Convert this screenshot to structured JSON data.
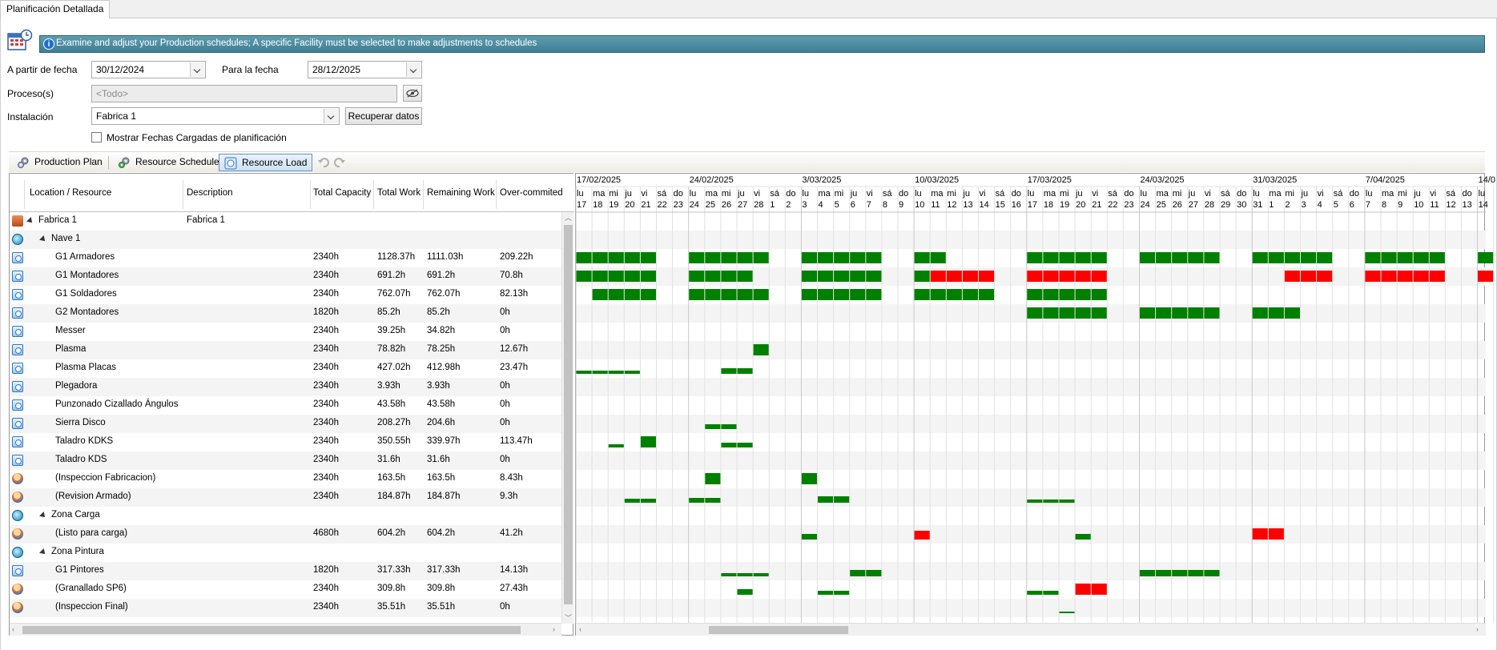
{
  "tab": {
    "label": "Planificación Detallada"
  },
  "banner": {
    "text": "Examine and adjust your Production schedules; A specific Facility must be selected to make adjustments to schedules"
  },
  "filters": {
    "from_label": "A partir de fecha",
    "from_value": "30/12/2024",
    "to_label": "Para la fecha",
    "to_value": "28/12/2025",
    "process_label": "Proceso(s)",
    "process_placeholder": "<Todo>",
    "facility_label": "Instalación",
    "facility_value": "Fabrica 1",
    "fetch_button": "Recuperar datos",
    "show_loaded_label": "Mostrar Fechas Cargadas de planificación"
  },
  "toolbar": {
    "production_plan": "Production Plan",
    "resource_schedule": "Resource Schedule",
    "resource_load": "Resource Load"
  },
  "grid": {
    "columns": [
      "Location / Resource",
      "Description",
      "Total Capacity",
      "Total Work",
      "Remaining Work",
      "Over-commited"
    ],
    "rows": [
      {
        "level": 0,
        "icon": "factory-icon",
        "kind": "fac",
        "name": "Fabrica 1",
        "desc": "Fabrica 1",
        "cap": "",
        "work": "",
        "rem": "",
        "over": "",
        "expand": true
      },
      {
        "level": 1,
        "icon": "area-icon",
        "kind": "nave",
        "name": "Nave 1",
        "desc": "",
        "cap": "",
        "work": "",
        "rem": "",
        "over": "",
        "expand": true
      },
      {
        "level": 2,
        "icon": "resource-icon",
        "kind": "res",
        "name": "G1 Armadores",
        "desc": "",
        "cap": "2340h",
        "work": "1128.37h",
        "rem": "1111.03h",
        "over": "209.22h"
      },
      {
        "level": 2,
        "icon": "resource-icon",
        "kind": "res",
        "name": "G1 Montadores",
        "desc": "",
        "cap": "2340h",
        "work": "691.2h",
        "rem": "691.2h",
        "over": "70.8h"
      },
      {
        "level": 2,
        "icon": "resource-icon",
        "kind": "res",
        "name": "G1 Soldadores",
        "desc": "",
        "cap": "2340h",
        "work": "762.07h",
        "rem": "762.07h",
        "over": "82.13h"
      },
      {
        "level": 2,
        "icon": "resource-icon",
        "kind": "res",
        "name": "G2 Montadores",
        "desc": "",
        "cap": "1820h",
        "work": "85.2h",
        "rem": "85.2h",
        "over": "0h"
      },
      {
        "level": 2,
        "icon": "resource-icon",
        "kind": "res",
        "name": "Messer",
        "desc": "",
        "cap": "2340h",
        "work": "39.25h",
        "rem": "34.82h",
        "over": "0h"
      },
      {
        "level": 2,
        "icon": "resource-icon",
        "kind": "res",
        "name": "Plasma",
        "desc": "",
        "cap": "2340h",
        "work": "78.82h",
        "rem": "78.25h",
        "over": "12.67h"
      },
      {
        "level": 2,
        "icon": "resource-icon",
        "kind": "res",
        "name": "Plasma Placas",
        "desc": "",
        "cap": "2340h",
        "work": "427.02h",
        "rem": "412.98h",
        "over": "23.47h"
      },
      {
        "level": 2,
        "icon": "resource-icon",
        "kind": "res",
        "name": "Plegadora",
        "desc": "",
        "cap": "2340h",
        "work": "3.93h",
        "rem": "3.93h",
        "over": "0h"
      },
      {
        "level": 2,
        "icon": "resource-icon",
        "kind": "res",
        "name": "Punzonado Cizallado Ángulos",
        "desc": "",
        "cap": "2340h",
        "work": "43.58h",
        "rem": "43.58h",
        "over": "0h"
      },
      {
        "level": 2,
        "icon": "resource-icon",
        "kind": "res",
        "name": "Sierra Disco",
        "desc": "",
        "cap": "2340h",
        "work": "208.27h",
        "rem": "204.6h",
        "over": "0h"
      },
      {
        "level": 2,
        "icon": "resource-icon",
        "kind": "res",
        "name": "Taladro KDKS",
        "desc": "",
        "cap": "2340h",
        "work": "350.55h",
        "rem": "339.97h",
        "over": "113.47h"
      },
      {
        "level": 2,
        "icon": "resource-icon",
        "kind": "res",
        "name": "Taladro KDS",
        "desc": "",
        "cap": "2340h",
        "work": "31.6h",
        "rem": "31.6h",
        "over": "0h"
      },
      {
        "level": 2,
        "icon": "person-icon",
        "kind": "person",
        "name": "(Inspeccion Fabricacion)",
        "desc": "",
        "cap": "2340h",
        "work": "163.5h",
        "rem": "163.5h",
        "over": "8.43h"
      },
      {
        "level": 2,
        "icon": "person-icon",
        "kind": "person",
        "name": "(Revision Armado)",
        "desc": "",
        "cap": "2340h",
        "work": "184.87h",
        "rem": "184.87h",
        "over": "9.3h"
      },
      {
        "level": 1,
        "icon": "area-icon",
        "kind": "nave",
        "name": "Zona Carga",
        "desc": "",
        "cap": "",
        "work": "",
        "rem": "",
        "over": "",
        "expand": true
      },
      {
        "level": 2,
        "icon": "person-icon",
        "kind": "person",
        "name": "(Listo para carga)",
        "desc": "",
        "cap": "4680h",
        "work": "604.2h",
        "rem": "604.2h",
        "over": "41.2h"
      },
      {
        "level": 1,
        "icon": "area-icon",
        "kind": "nave",
        "name": "Zona Pintura",
        "desc": "",
        "cap": "",
        "work": "",
        "rem": "",
        "over": "",
        "expand": true
      },
      {
        "level": 2,
        "icon": "resource-icon",
        "kind": "res",
        "name": "G1  Pintores",
        "desc": "",
        "cap": "1820h",
        "work": "317.33h",
        "rem": "317.33h",
        "over": "14.13h"
      },
      {
        "level": 2,
        "icon": "person-icon",
        "kind": "person",
        "name": "(Granallado SP6)",
        "desc": "",
        "cap": "2340h",
        "work": "309.8h",
        "rem": "309.8h",
        "over": "27.43h"
      },
      {
        "level": 2,
        "icon": "person-icon",
        "kind": "person",
        "name": "(Inspeccion Final)",
        "desc": "",
        "cap": "2340h",
        "work": "35.51h",
        "rem": "35.51h",
        "over": "0h"
      }
    ]
  },
  "gantt": {
    "weeks": [
      "17/02/2025",
      "24/02/2025",
      "3/03/2025",
      "10/03/2025",
      "17/03/2025",
      "24/03/2025",
      "31/03/2025",
      "7/04/2025",
      "14/0"
    ],
    "day_names": [
      "lu",
      "ma",
      "mi",
      "ju",
      "vi",
      "sá",
      "do"
    ],
    "day_numbers": [
      "17",
      "18",
      "19",
      "20",
      "21",
      "22",
      "23",
      "24",
      "25",
      "26",
      "27",
      "28",
      "1",
      "2",
      "3",
      "4",
      "5",
      "6",
      "7",
      "8",
      "9",
      "10",
      "11",
      "12",
      "13",
      "14",
      "15",
      "16",
      "17",
      "18",
      "19",
      "20",
      "21",
      "22",
      "23",
      "24",
      "25",
      "26",
      "27",
      "28",
      "29",
      "30",
      "31",
      "1",
      "2",
      "3",
      "4",
      "5",
      "6",
      "7",
      "8",
      "9",
      "10",
      "11",
      "12",
      "13",
      "14"
    ],
    "ok_color": "#008000",
    "over_color": "#ff0000",
    "bars": [
      {
        "row": 2,
        "segments": [
          [
            0,
            5,
            "ok",
            1
          ],
          [
            7,
            12,
            "ok",
            1
          ],
          [
            14,
            19,
            "ok",
            1
          ],
          [
            21,
            23,
            "ok",
            1
          ],
          [
            28,
            33,
            "ok",
            1
          ],
          [
            35,
            40,
            "ok",
            1
          ],
          [
            42,
            47,
            "ok",
            1
          ],
          [
            49,
            54,
            "ok",
            1
          ],
          [
            56,
            57,
            "ok",
            1
          ]
        ]
      },
      {
        "row": 3,
        "segments": [
          [
            0,
            5,
            "ok",
            1
          ],
          [
            7,
            11,
            "ok",
            1
          ],
          [
            14,
            19,
            "ok",
            1
          ],
          [
            21,
            22,
            "ok",
            1
          ],
          [
            22,
            26,
            "over",
            1
          ],
          [
            28,
            33,
            "over",
            1
          ],
          [
            44,
            47,
            "over",
            1
          ],
          [
            49,
            54,
            "over",
            1
          ],
          [
            56,
            57,
            "over",
            1
          ]
        ]
      },
      {
        "row": 4,
        "segments": [
          [
            1,
            5,
            "ok",
            1
          ],
          [
            7,
            12,
            "ok",
            1
          ],
          [
            14,
            19,
            "ok",
            1
          ],
          [
            21,
            26,
            "ok",
            1
          ],
          [
            28,
            33,
            "ok",
            1
          ]
        ]
      },
      {
        "row": 5,
        "segments": [
          [
            28,
            33,
            "ok",
            1
          ],
          [
            35,
            40,
            "ok",
            1
          ],
          [
            42,
            45,
            "ok",
            1
          ]
        ]
      },
      {
        "row": 7,
        "segments": [
          [
            11,
            12,
            "ok",
            1
          ]
        ]
      },
      {
        "row": 8,
        "segments": [
          [
            0,
            4,
            "ok",
            0.3
          ],
          [
            9,
            11,
            "ok",
            0.5
          ]
        ]
      },
      {
        "row": 11,
        "segments": [
          [
            8,
            10,
            "ok",
            0.4
          ]
        ]
      },
      {
        "row": 12,
        "segments": [
          [
            2,
            3,
            "ok",
            0.3
          ],
          [
            4,
            5,
            "ok",
            1
          ],
          [
            9,
            11,
            "ok",
            0.4
          ]
        ]
      },
      {
        "row": 14,
        "segments": [
          [
            8,
            9,
            "ok",
            1
          ],
          [
            14,
            15,
            "ok",
            1
          ]
        ]
      },
      {
        "row": 15,
        "segments": [
          [
            3,
            5,
            "ok",
            0.35
          ],
          [
            7,
            9,
            "ok",
            0.4
          ],
          [
            15,
            17,
            "ok",
            0.6
          ],
          [
            28,
            31,
            "ok",
            0.3
          ]
        ]
      },
      {
        "row": 17,
        "segments": [
          [
            14,
            15,
            "ok",
            0.5
          ],
          [
            21,
            22,
            "over",
            0.8
          ],
          [
            31,
            32,
            "ok",
            0.5
          ],
          [
            42,
            44,
            "over",
            1
          ]
        ]
      },
      {
        "row": 19,
        "segments": [
          [
            9,
            12,
            "ok",
            0.3
          ],
          [
            17,
            19,
            "ok",
            0.6
          ],
          [
            35,
            40,
            "ok",
            0.6
          ]
        ]
      },
      {
        "row": 20,
        "segments": [
          [
            10,
            11,
            "ok",
            0.5
          ],
          [
            15,
            17,
            "ok",
            0.35
          ],
          [
            28,
            30,
            "ok",
            0.35
          ],
          [
            31,
            33,
            "over",
            1
          ]
        ]
      },
      {
        "row": 21,
        "segments": [
          [
            30,
            31,
            "ok",
            0.15
          ]
        ]
      }
    ]
  }
}
